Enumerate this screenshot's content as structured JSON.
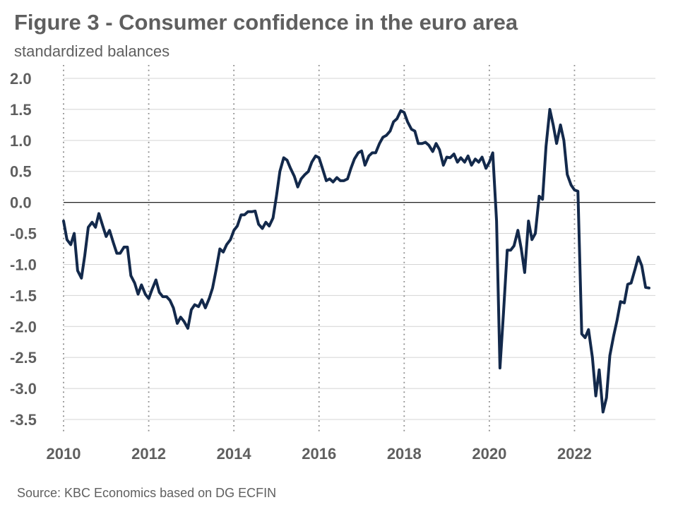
{
  "title": "Figure 3 - Consumer confidence in the euro area",
  "subtitle": "standardized balances",
  "source": "Source: KBC Economics based on DG ECFIN",
  "chart_data": {
    "type": "line",
    "ylabel": "standardized balances",
    "xlabel": "",
    "ylim": [
      -3.5,
      2.0
    ],
    "xlim": [
      2010.0,
      2023.9
    ],
    "yticks": [
      2.0,
      1.5,
      1.0,
      0.5,
      0.0,
      -0.5,
      -1.0,
      -1.5,
      -2.0,
      -2.5,
      -3.0,
      -3.5
    ],
    "ytick_labels": [
      "2.0",
      "1.5",
      "1.0",
      "0.5",
      "0.0",
      "-0.5",
      "-1.0",
      "-1.5",
      "-2.0",
      "-2.5",
      "-3.0",
      "-3.5"
    ],
    "xticks": [
      2010,
      2012,
      2014,
      2016,
      2018,
      2020,
      2022
    ],
    "xtick_labels": [
      "2010",
      "2012",
      "2014",
      "2016",
      "2018",
      "2020",
      "2022"
    ],
    "grid": "horizontal solid lines; dotted vertical lines at year ticks",
    "line_color": "#13294b",
    "series": [
      {
        "values": [
          [
            2010.0,
            -0.3
          ],
          [
            2010.08,
            -0.6
          ],
          [
            2010.17,
            -0.68
          ],
          [
            2010.25,
            -0.5
          ],
          [
            2010.33,
            -1.1
          ],
          [
            2010.42,
            -1.22
          ],
          [
            2010.5,
            -0.85
          ],
          [
            2010.58,
            -0.4
          ],
          [
            2010.67,
            -0.32
          ],
          [
            2010.75,
            -0.4
          ],
          [
            2010.83,
            -0.18
          ],
          [
            2010.92,
            -0.38
          ],
          [
            2011.0,
            -0.55
          ],
          [
            2011.08,
            -0.45
          ],
          [
            2011.17,
            -0.65
          ],
          [
            2011.25,
            -0.82
          ],
          [
            2011.33,
            -0.82
          ],
          [
            2011.42,
            -0.72
          ],
          [
            2011.5,
            -0.72
          ],
          [
            2011.58,
            -1.18
          ],
          [
            2011.67,
            -1.3
          ],
          [
            2011.75,
            -1.48
          ],
          [
            2011.83,
            -1.33
          ],
          [
            2011.92,
            -1.48
          ],
          [
            2012.0,
            -1.55
          ],
          [
            2012.08,
            -1.4
          ],
          [
            2012.17,
            -1.25
          ],
          [
            2012.25,
            -1.45
          ],
          [
            2012.33,
            -1.52
          ],
          [
            2012.42,
            -1.52
          ],
          [
            2012.5,
            -1.58
          ],
          [
            2012.58,
            -1.7
          ],
          [
            2012.67,
            -1.95
          ],
          [
            2012.75,
            -1.85
          ],
          [
            2012.83,
            -1.92
          ],
          [
            2012.92,
            -2.03
          ],
          [
            2013.0,
            -1.73
          ],
          [
            2013.08,
            -1.65
          ],
          [
            2013.17,
            -1.68
          ],
          [
            2013.25,
            -1.57
          ],
          [
            2013.33,
            -1.7
          ],
          [
            2013.42,
            -1.55
          ],
          [
            2013.5,
            -1.38
          ],
          [
            2013.58,
            -1.1
          ],
          [
            2013.67,
            -0.75
          ],
          [
            2013.75,
            -0.8
          ],
          [
            2013.83,
            -0.68
          ],
          [
            2013.92,
            -0.6
          ],
          [
            2014.0,
            -0.45
          ],
          [
            2014.08,
            -0.38
          ],
          [
            2014.17,
            -0.2
          ],
          [
            2014.25,
            -0.2
          ],
          [
            2014.33,
            -0.15
          ],
          [
            2014.42,
            -0.15
          ],
          [
            2014.5,
            -0.14
          ],
          [
            2014.58,
            -0.35
          ],
          [
            2014.67,
            -0.42
          ],
          [
            2014.75,
            -0.32
          ],
          [
            2014.83,
            -0.38
          ],
          [
            2014.92,
            -0.25
          ],
          [
            2015.0,
            0.1
          ],
          [
            2015.08,
            0.5
          ],
          [
            2015.17,
            0.72
          ],
          [
            2015.25,
            0.68
          ],
          [
            2015.33,
            0.55
          ],
          [
            2015.42,
            0.42
          ],
          [
            2015.5,
            0.25
          ],
          [
            2015.58,
            0.38
          ],
          [
            2015.67,
            0.45
          ],
          [
            2015.75,
            0.5
          ],
          [
            2015.83,
            0.65
          ],
          [
            2015.92,
            0.75
          ],
          [
            2016.0,
            0.72
          ],
          [
            2016.08,
            0.55
          ],
          [
            2016.17,
            0.35
          ],
          [
            2016.25,
            0.38
          ],
          [
            2016.33,
            0.33
          ],
          [
            2016.42,
            0.4
          ],
          [
            2016.5,
            0.35
          ],
          [
            2016.58,
            0.35
          ],
          [
            2016.67,
            0.38
          ],
          [
            2016.75,
            0.55
          ],
          [
            2016.83,
            0.7
          ],
          [
            2016.92,
            0.8
          ],
          [
            2017.0,
            0.83
          ],
          [
            2017.08,
            0.6
          ],
          [
            2017.17,
            0.75
          ],
          [
            2017.25,
            0.8
          ],
          [
            2017.33,
            0.8
          ],
          [
            2017.42,
            0.95
          ],
          [
            2017.5,
            1.05
          ],
          [
            2017.58,
            1.08
          ],
          [
            2017.67,
            1.15
          ],
          [
            2017.75,
            1.3
          ],
          [
            2017.83,
            1.35
          ],
          [
            2017.92,
            1.48
          ],
          [
            2018.0,
            1.45
          ],
          [
            2018.08,
            1.3
          ],
          [
            2018.17,
            1.18
          ],
          [
            2018.25,
            1.15
          ],
          [
            2018.33,
            0.95
          ],
          [
            2018.42,
            0.95
          ],
          [
            2018.5,
            0.97
          ],
          [
            2018.58,
            0.92
          ],
          [
            2018.67,
            0.82
          ],
          [
            2018.75,
            0.95
          ],
          [
            2018.83,
            0.85
          ],
          [
            2018.92,
            0.6
          ],
          [
            2019.0,
            0.73
          ],
          [
            2019.08,
            0.72
          ],
          [
            2019.17,
            0.78
          ],
          [
            2019.25,
            0.65
          ],
          [
            2019.33,
            0.72
          ],
          [
            2019.42,
            0.65
          ],
          [
            2019.5,
            0.75
          ],
          [
            2019.58,
            0.6
          ],
          [
            2019.67,
            0.7
          ],
          [
            2019.75,
            0.65
          ],
          [
            2019.83,
            0.73
          ],
          [
            2019.92,
            0.55
          ],
          [
            2020.0,
            0.65
          ],
          [
            2020.08,
            0.8
          ],
          [
            2020.17,
            -0.3
          ],
          [
            2020.25,
            -2.67
          ],
          [
            2020.33,
            -1.8
          ],
          [
            2020.42,
            -0.77
          ],
          [
            2020.5,
            -0.77
          ],
          [
            2020.58,
            -0.7
          ],
          [
            2020.67,
            -0.45
          ],
          [
            2020.75,
            -0.75
          ],
          [
            2020.83,
            -1.13
          ],
          [
            2020.92,
            -0.3
          ],
          [
            2021.0,
            -0.6
          ],
          [
            2021.08,
            -0.5
          ],
          [
            2021.17,
            0.1
          ],
          [
            2021.25,
            0.05
          ],
          [
            2021.33,
            0.9
          ],
          [
            2021.42,
            1.5
          ],
          [
            2021.5,
            1.25
          ],
          [
            2021.58,
            0.95
          ],
          [
            2021.67,
            1.25
          ],
          [
            2021.75,
            1.0
          ],
          [
            2021.83,
            0.45
          ],
          [
            2021.92,
            0.28
          ],
          [
            2022.0,
            0.2
          ],
          [
            2022.08,
            0.18
          ],
          [
            2022.17,
            -2.12
          ],
          [
            2022.25,
            -2.18
          ],
          [
            2022.33,
            -2.05
          ],
          [
            2022.42,
            -2.5
          ],
          [
            2022.5,
            -3.12
          ],
          [
            2022.58,
            -2.7
          ],
          [
            2022.67,
            -3.38
          ],
          [
            2022.75,
            -3.15
          ],
          [
            2022.83,
            -2.47
          ],
          [
            2022.92,
            -2.15
          ],
          [
            2023.0,
            -1.9
          ],
          [
            2023.08,
            -1.6
          ],
          [
            2023.17,
            -1.62
          ],
          [
            2023.25,
            -1.32
          ],
          [
            2023.33,
            -1.3
          ],
          [
            2023.42,
            -1.08
          ],
          [
            2023.5,
            -0.88
          ],
          [
            2023.58,
            -1.02
          ],
          [
            2023.67,
            -1.37
          ],
          [
            2023.75,
            -1.38
          ]
        ]
      }
    ]
  }
}
